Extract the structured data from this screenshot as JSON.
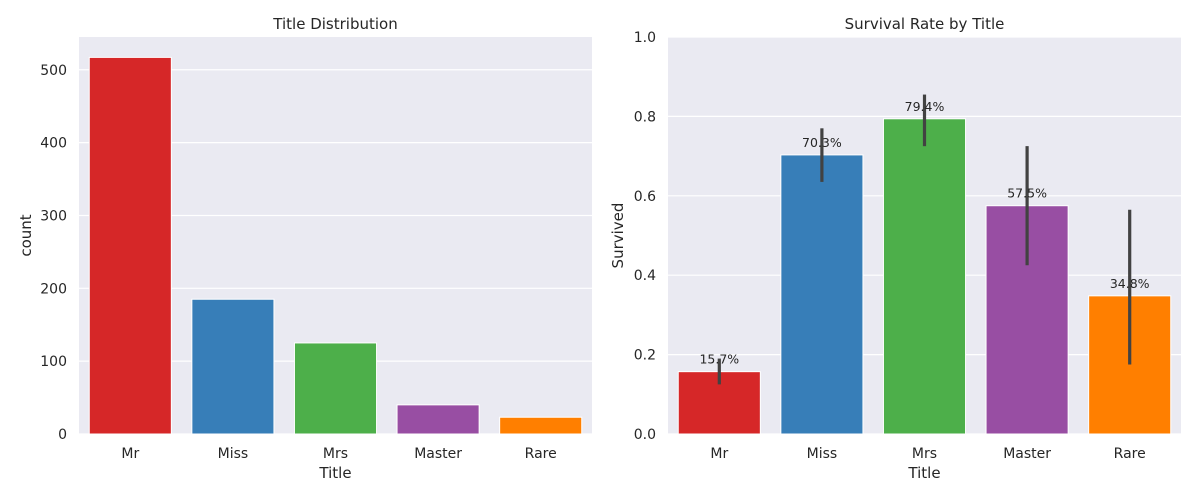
{
  "chart_data": [
    {
      "type": "bar",
      "title": "Title Distribution",
      "xlabel": "Title",
      "ylabel": "count",
      "categories": [
        "Mr",
        "Miss",
        "Mrs",
        "Master",
        "Rare"
      ],
      "values": [
        517,
        185,
        125,
        40,
        23
      ],
      "ylim": [
        0,
        545
      ],
      "yticks": [
        0,
        100,
        200,
        300,
        400,
        500
      ],
      "ytick_labels": [
        "0",
        "100",
        "200",
        "300",
        "400",
        "500"
      ],
      "colors": [
        "#d62728",
        "#377eb8",
        "#4daf4a",
        "#984ea3",
        "#ff7f00"
      ],
      "grid": true
    },
    {
      "type": "bar",
      "title": "Survival Rate by Title",
      "xlabel": "Title",
      "ylabel": "Survived",
      "categories": [
        "Mr",
        "Miss",
        "Mrs",
        "Master",
        "Rare"
      ],
      "values": [
        0.157,
        0.703,
        0.794,
        0.575,
        0.348
      ],
      "error_low": [
        0.125,
        0.635,
        0.725,
        0.425,
        0.175
      ],
      "error_high": [
        0.19,
        0.77,
        0.855,
        0.725,
        0.565
      ],
      "data_labels": [
        "15.7%",
        "70.3%",
        "79.4%",
        "57.5%",
        "34.8%"
      ],
      "ylim": [
        0,
        1.0
      ],
      "yticks": [
        0,
        0.2,
        0.4,
        0.6,
        0.8,
        1.0
      ],
      "ytick_labels": [
        "0.0",
        "0.2",
        "0.4",
        "0.6",
        "0.8",
        "1.0"
      ],
      "colors": [
        "#d62728",
        "#377eb8",
        "#4daf4a",
        "#984ea3",
        "#ff7f00"
      ],
      "grid": true
    }
  ]
}
